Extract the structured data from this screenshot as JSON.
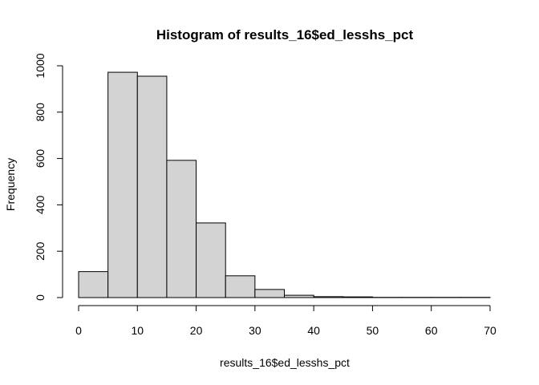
{
  "chart_data": {
    "type": "bar",
    "title": "Histogram of results_16$ed_lesshs_pct",
    "xlabel": "results_16$ed_lesshs_pct",
    "ylabel": "Frequency",
    "bin_edges": [
      0,
      5,
      10,
      15,
      20,
      25,
      30,
      35,
      40,
      45,
      50,
      55,
      60,
      65,
      70
    ],
    "values": [
      112,
      972,
      955,
      592,
      322,
      94,
      35,
      10,
      4,
      3,
      1,
      1,
      1,
      1
    ],
    "xlim": [
      0,
      70
    ],
    "ylim": [
      0,
      1000
    ],
    "x_ticks": [
      0,
      10,
      20,
      30,
      40,
      50,
      60,
      70
    ],
    "y_ticks": [
      0,
      200,
      400,
      600,
      800,
      1000
    ],
    "x_tick_labels": [
      "0",
      "10",
      "20",
      "30",
      "40",
      "50",
      "60",
      "70"
    ],
    "y_tick_labels": [
      "0",
      "200",
      "400",
      "600",
      "800",
      "1000"
    ],
    "colors": {
      "bar_fill": "#d3d3d3",
      "bar_stroke": "#000000"
    }
  }
}
